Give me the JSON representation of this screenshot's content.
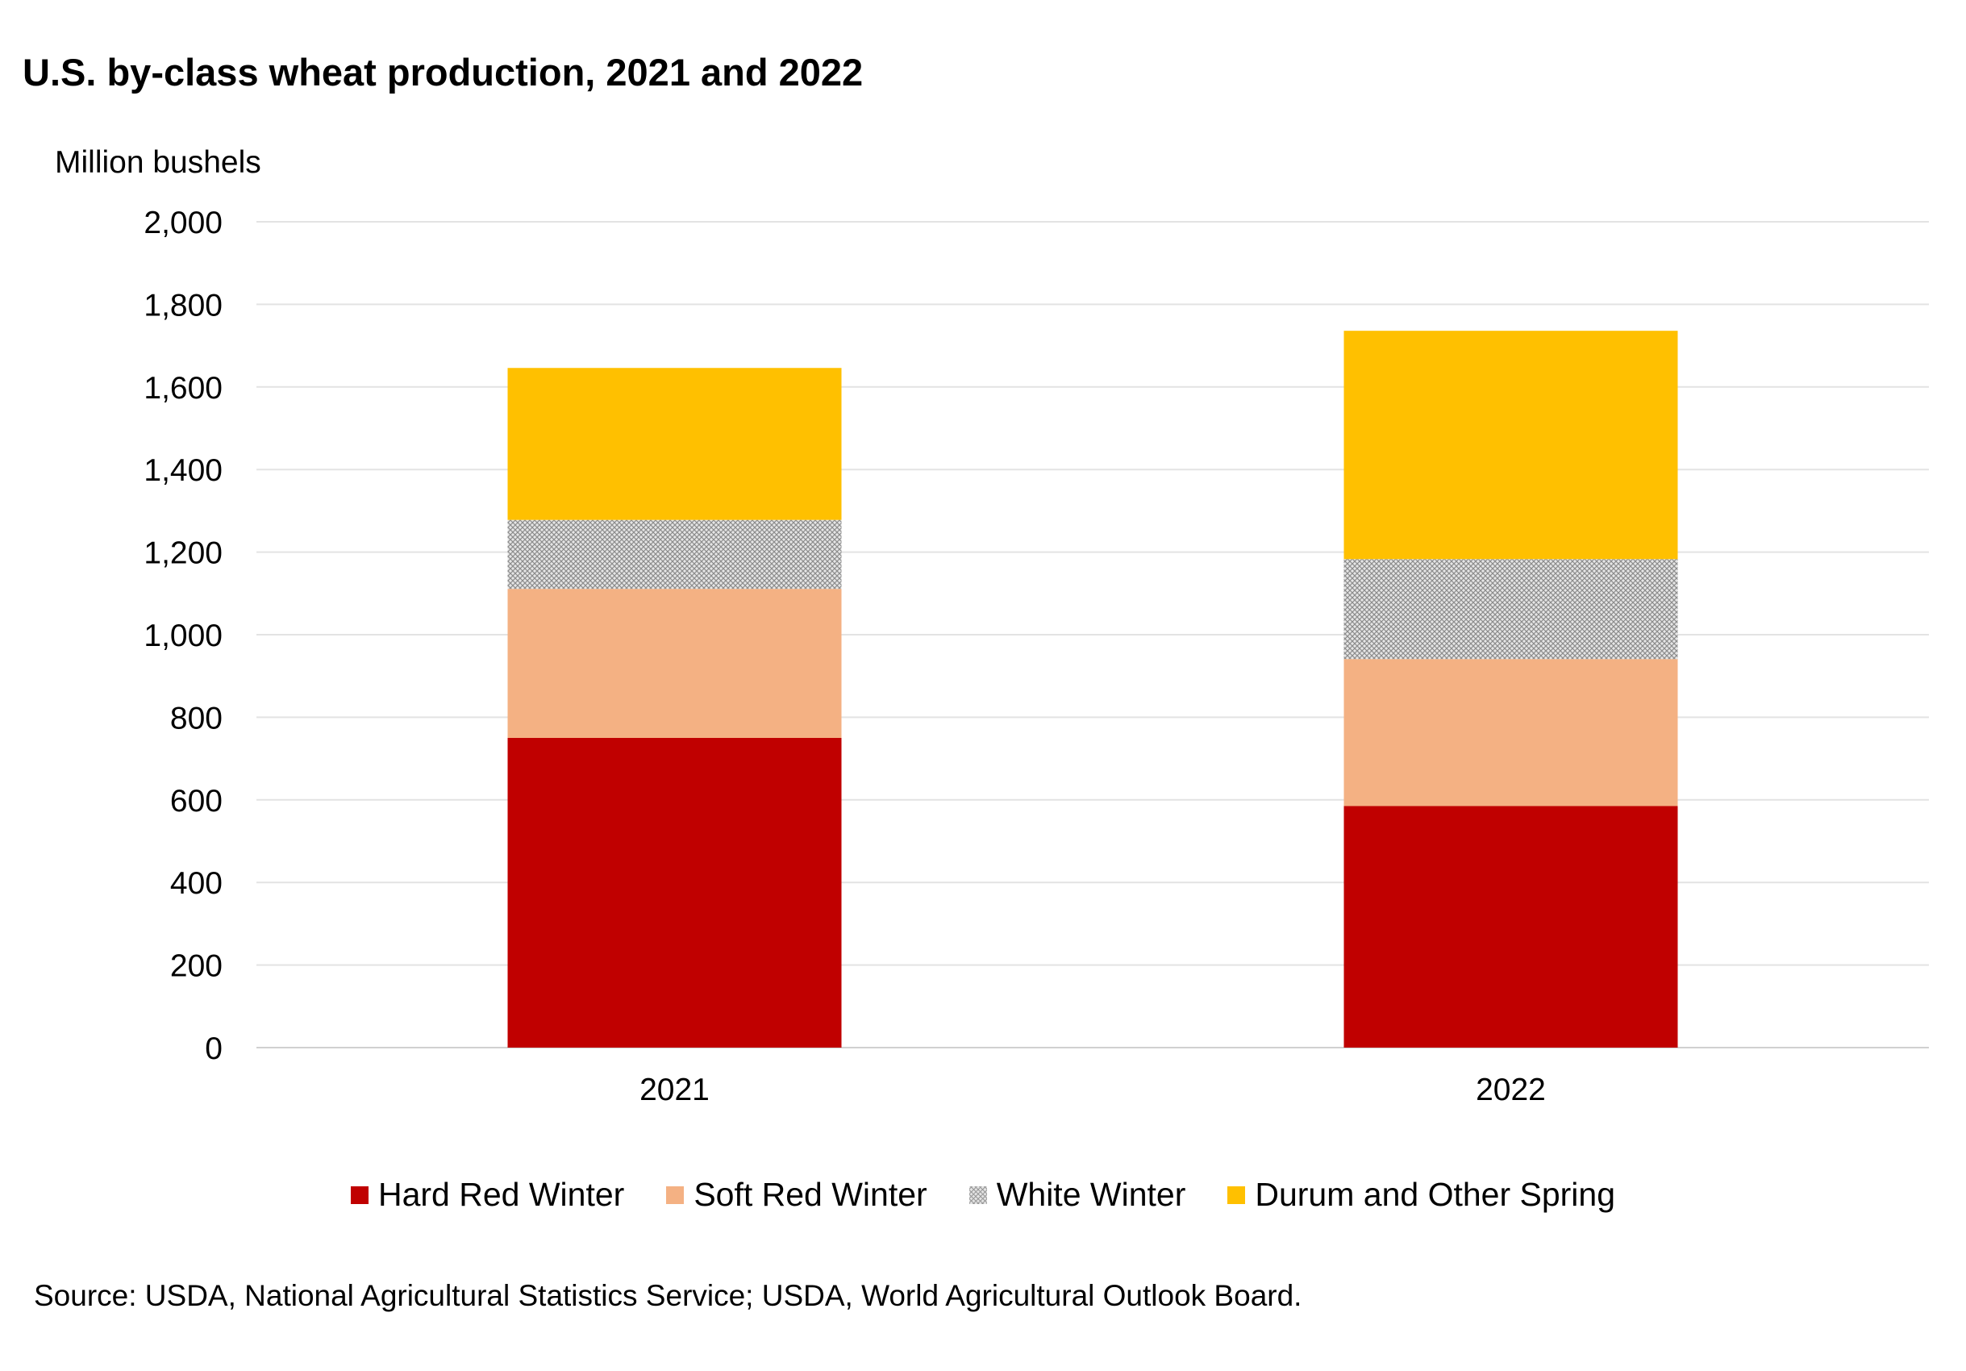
{
  "chart_data": {
    "type": "bar",
    "stacked": true,
    "title": "U.S. by-class wheat production, 2021 and 2022",
    "ylabel": "Million bushels",
    "xlabel": "",
    "categories": [
      "2021",
      "2022"
    ],
    "ylim": [
      0,
      2000
    ],
    "yticks": [
      0,
      200,
      400,
      600,
      800,
      1000,
      1200,
      1400,
      1600,
      1800,
      2000
    ],
    "ytick_labels": [
      "0",
      "200",
      "400",
      "600",
      "800",
      "1,000",
      "1,200",
      "1,400",
      "1,600",
      "1,800",
      "2,000"
    ],
    "grid": true,
    "legend_position": "bottom",
    "series": [
      {
        "name": "Hard Red Winter",
        "values": [
          750,
          585
        ],
        "color": "#c00000",
        "pattern": "none"
      },
      {
        "name": "Soft Red Winter",
        "values": [
          361,
          356
        ],
        "color": "#f4b183",
        "pattern": "none"
      },
      {
        "name": "White Winter",
        "values": [
          167,
          242
        ],
        "color": "#c8c8c8",
        "pattern": "crosshatch"
      },
      {
        "name": "Durum and Other Spring",
        "values": [
          368,
          553
        ],
        "color": "#ffc000",
        "pattern": "none"
      }
    ]
  },
  "source": "Source: USDA, National Agricultural Statistics Service; USDA, World Agricultural Outlook Board."
}
